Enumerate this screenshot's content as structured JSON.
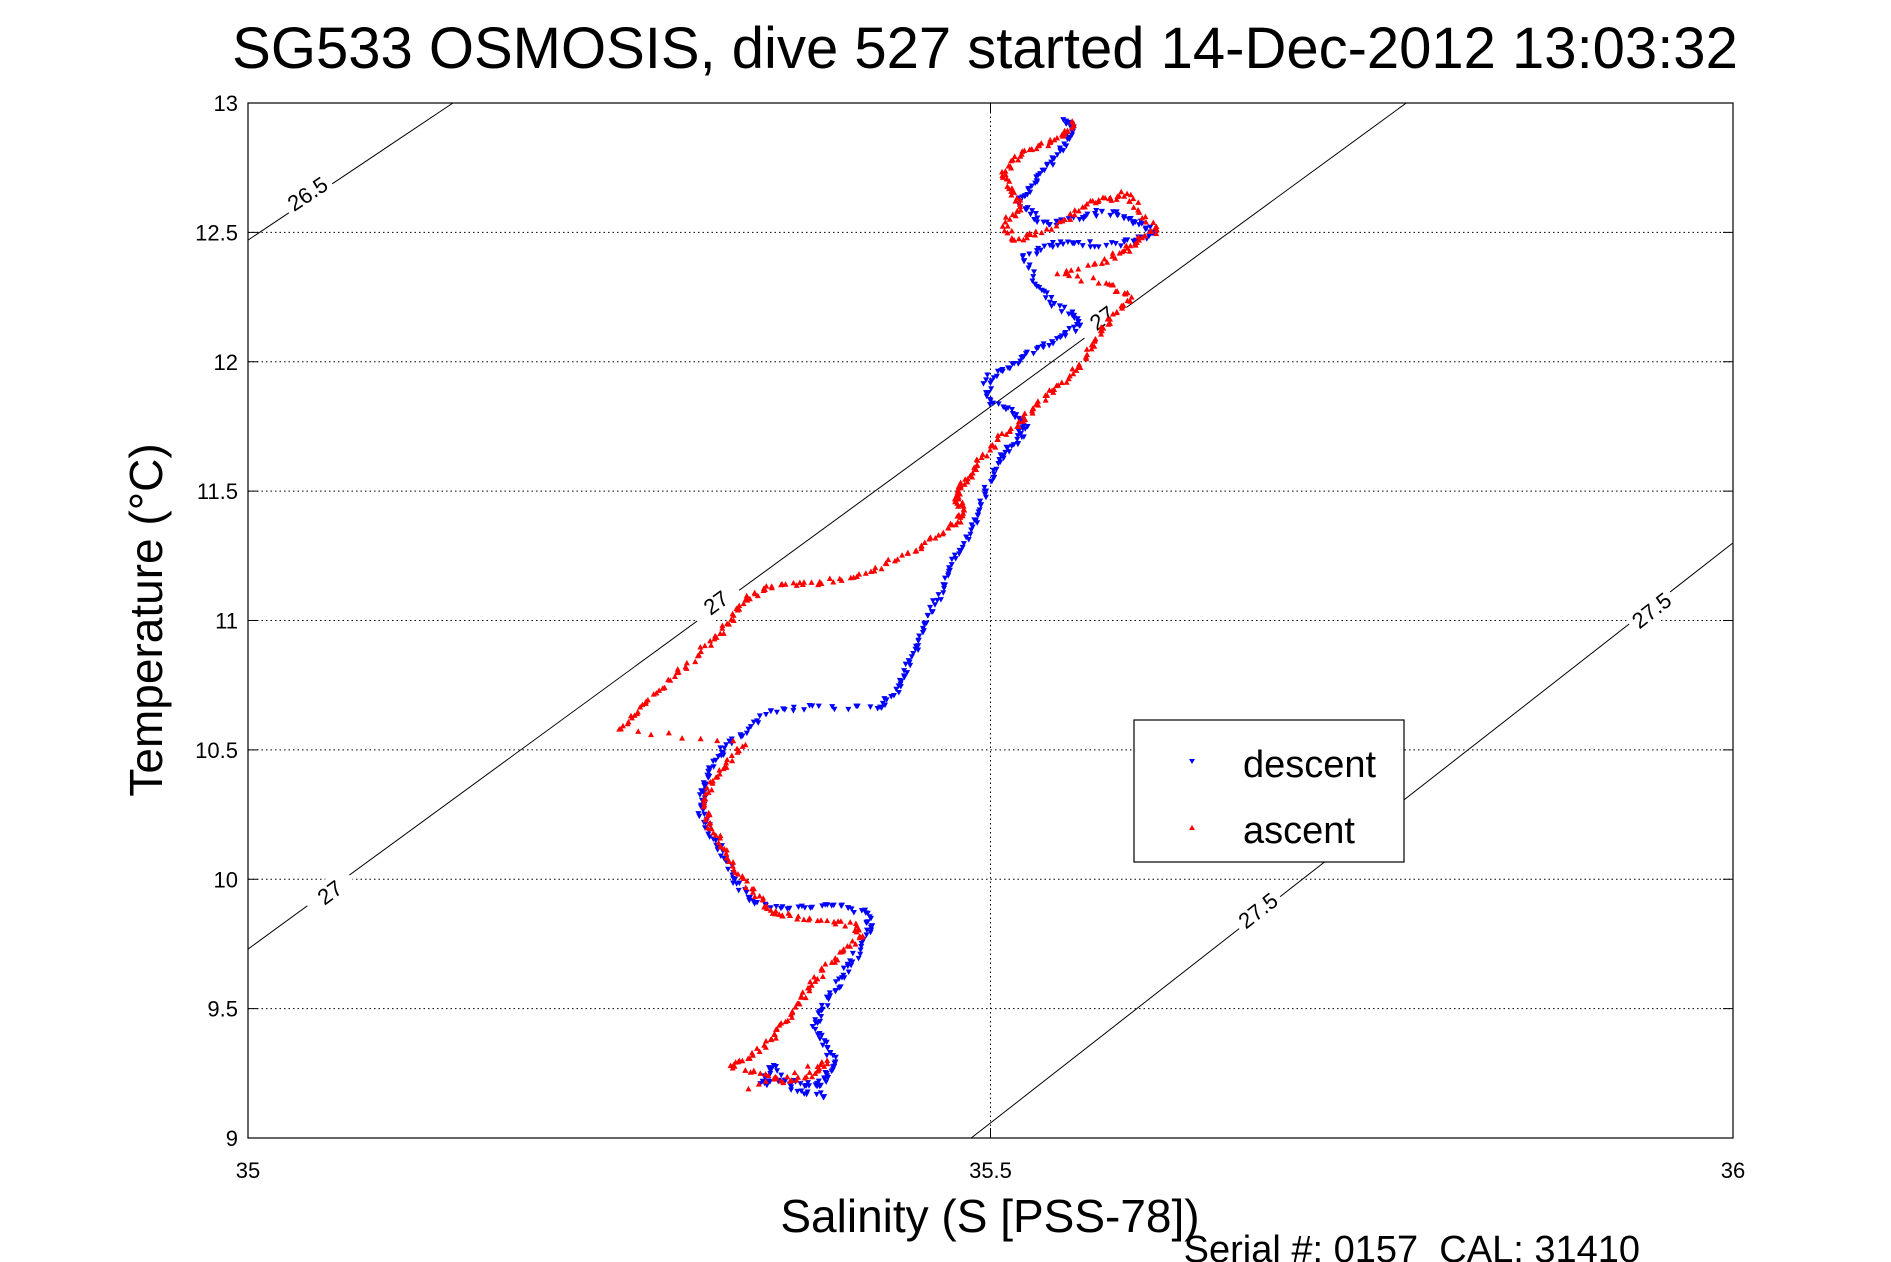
{
  "chart_data": {
    "type": "scatter",
    "title": "SG533 OSMOSIS, dive 527 started 14-Dec-2012 13:03:32",
    "xlabel": "Salinity (S [PSS-78])",
    "ylabel": "Temperature (°C)",
    "footer": "Serial #: 0157  CAL: 31410",
    "xlim": [
      35,
      36
    ],
    "ylim": [
      9,
      13
    ],
    "x_ticks": [
      "35",
      "35.5",
      "36"
    ],
    "y_ticks": [
      "9",
      "9.5",
      "10",
      "10.5",
      "11",
      "11.5",
      "12",
      "12.5",
      "13"
    ],
    "grid": true,
    "legend_position": "lower-right",
    "density_contours": [
      {
        "label": "26.5",
        "points": [
          [
            35.0,
            12.47
          ],
          [
            35.138,
            13.0
          ]
        ],
        "label_at": [
          35.04,
          12.65
        ]
      },
      {
        "label": "27",
        "points": [
          [
            35.0,
            9.73
          ],
          [
            35.78,
            13.0
          ]
        ],
        "label_ats": [
          [
            35.055,
            9.95
          ],
          [
            35.315,
            11.07
          ],
          [
            35.575,
            12.17
          ]
        ]
      },
      {
        "label": "27.5",
        "points": [
          [
            35.487,
            9.0
          ],
          [
            36.0,
            11.3
          ]
        ],
        "label_ats": [
          [
            35.68,
            9.88
          ],
          [
            35.945,
            11.04
          ]
        ]
      }
    ],
    "series": [
      {
        "name": "descent",
        "color": "#0000ff",
        "marker": "triangle-down",
        "points": [
          [
            35.551,
            12.93
          ],
          [
            35.555,
            12.91
          ],
          [
            35.552,
            12.86
          ],
          [
            35.545,
            12.8
          ],
          [
            35.535,
            12.74
          ],
          [
            35.526,
            12.67
          ],
          [
            35.52,
            12.62
          ],
          [
            35.527,
            12.57
          ],
          [
            35.54,
            12.53
          ],
          [
            35.56,
            12.55
          ],
          [
            35.575,
            12.58
          ],
          [
            35.59,
            12.56
          ],
          [
            35.6,
            12.53
          ],
          [
            35.61,
            12.5
          ],
          [
            35.598,
            12.47
          ],
          [
            35.578,
            12.45
          ],
          [
            35.555,
            12.46
          ],
          [
            35.54,
            12.45
          ],
          [
            35.522,
            12.41
          ],
          [
            35.53,
            12.3
          ],
          [
            35.54,
            12.23
          ],
          [
            35.555,
            12.18
          ],
          [
            35.56,
            12.14
          ],
          [
            35.548,
            12.1
          ],
          [
            35.535,
            12.06
          ],
          [
            35.522,
            12.02
          ],
          [
            35.508,
            11.97
          ],
          [
            35.497,
            11.93
          ],
          [
            35.5,
            11.85
          ],
          [
            35.515,
            11.8
          ],
          [
            35.525,
            11.75
          ],
          [
            35.518,
            11.7
          ],
          [
            35.51,
            11.65
          ],
          [
            35.502,
            11.58
          ],
          [
            35.497,
            11.5
          ],
          [
            35.492,
            11.42
          ],
          [
            35.487,
            11.35
          ],
          [
            35.48,
            11.27
          ],
          [
            35.472,
            11.19
          ],
          [
            35.465,
            11.1
          ],
          [
            35.458,
            11.02
          ],
          [
            35.452,
            10.94
          ],
          [
            35.447,
            10.86
          ],
          [
            35.442,
            10.78
          ],
          [
            35.435,
            10.71
          ],
          [
            35.424,
            10.66
          ],
          [
            35.38,
            10.67
          ],
          [
            35.352,
            10.65
          ],
          [
            35.337,
            10.58
          ],
          [
            35.322,
            10.52
          ],
          [
            35.315,
            10.46
          ],
          [
            35.31,
            10.4
          ],
          [
            35.306,
            10.34
          ],
          [
            35.305,
            10.28
          ],
          [
            35.307,
            10.22
          ],
          [
            35.315,
            10.15
          ],
          [
            35.322,
            10.08
          ],
          [
            35.328,
            10.0
          ],
          [
            35.337,
            9.93
          ],
          [
            35.352,
            9.89
          ],
          [
            35.375,
            9.89
          ],
          [
            35.4,
            9.9
          ],
          [
            35.416,
            9.87
          ],
          [
            35.42,
            9.82
          ],
          [
            35.414,
            9.76
          ],
          [
            35.407,
            9.68
          ],
          [
            35.4,
            9.62
          ],
          [
            35.392,
            9.55
          ],
          [
            35.385,
            9.49
          ],
          [
            35.382,
            9.42
          ],
          [
            35.39,
            9.35
          ],
          [
            35.395,
            9.29
          ],
          [
            35.39,
            9.24
          ],
          [
            35.385,
            9.2
          ],
          [
            35.372,
            9.21
          ],
          [
            35.357,
            9.22
          ],
          [
            35.345,
            9.21
          ],
          [
            35.354,
            9.28
          ],
          [
            35.37,
            9.18
          ],
          [
            35.388,
            9.16
          ]
        ]
      },
      {
        "name": "ascent",
        "color": "#ff0000",
        "marker": "triangle-up",
        "points": [
          [
            35.555,
            12.93
          ],
          [
            35.55,
            12.88
          ],
          [
            35.54,
            12.85
          ],
          [
            35.528,
            12.82
          ],
          [
            35.515,
            12.78
          ],
          [
            35.508,
            12.72
          ],
          [
            35.514,
            12.66
          ],
          [
            35.52,
            12.6
          ],
          [
            35.51,
            12.54
          ],
          [
            35.515,
            12.47
          ],
          [
            35.53,
            12.49
          ],
          [
            35.55,
            12.55
          ],
          [
            35.565,
            12.61
          ],
          [
            35.58,
            12.63
          ],
          [
            35.592,
            12.65
          ],
          [
            35.6,
            12.58
          ],
          [
            35.612,
            12.51
          ],
          [
            35.6,
            12.47
          ],
          [
            35.59,
            12.43
          ],
          [
            35.575,
            12.38
          ],
          [
            35.545,
            12.34
          ],
          [
            35.58,
            12.3
          ],
          [
            35.595,
            12.25
          ],
          [
            35.585,
            12.19
          ],
          [
            35.575,
            12.12
          ],
          [
            35.568,
            12.05
          ],
          [
            35.56,
            11.98
          ],
          [
            35.548,
            11.92
          ],
          [
            35.537,
            11.87
          ],
          [
            35.528,
            11.81
          ],
          [
            35.518,
            11.75
          ],
          [
            35.505,
            11.7
          ],
          [
            35.494,
            11.63
          ],
          [
            35.488,
            11.57
          ],
          [
            35.48,
            11.52
          ],
          [
            35.476,
            11.47
          ],
          [
            35.482,
            11.43
          ],
          [
            35.478,
            11.38
          ],
          [
            35.465,
            11.33
          ],
          [
            35.45,
            11.27
          ],
          [
            35.43,
            11.22
          ],
          [
            35.41,
            11.17
          ],
          [
            35.385,
            11.15
          ],
          [
            35.362,
            11.14
          ],
          [
            35.348,
            11.12
          ],
          [
            35.335,
            11.08
          ],
          [
            35.327,
            11.02
          ],
          [
            35.318,
            10.95
          ],
          [
            35.305,
            10.88
          ],
          [
            35.29,
            10.8
          ],
          [
            35.275,
            10.72
          ],
          [
            35.262,
            10.64
          ],
          [
            35.25,
            10.58
          ],
          [
            35.335,
            10.52
          ],
          [
            35.322,
            10.45
          ],
          [
            35.313,
            10.38
          ],
          [
            35.308,
            10.31
          ],
          [
            35.309,
            10.24
          ],
          [
            35.315,
            10.17
          ],
          [
            35.322,
            10.1
          ],
          [
            35.33,
            10.02
          ],
          [
            35.34,
            9.95
          ],
          [
            35.352,
            9.88
          ],
          [
            35.365,
            9.86
          ],
          [
            35.39,
            9.84
          ],
          [
            35.41,
            9.82
          ],
          [
            35.412,
            9.78
          ],
          [
            35.4,
            9.72
          ],
          [
            35.387,
            9.65
          ],
          [
            35.378,
            9.58
          ],
          [
            35.37,
            9.52
          ],
          [
            35.362,
            9.45
          ],
          [
            35.352,
            9.38
          ],
          [
            35.34,
            9.32
          ],
          [
            35.325,
            9.28
          ],
          [
            35.345,
            9.25
          ],
          [
            35.365,
            9.22
          ],
          [
            35.382,
            9.25
          ],
          [
            35.39,
            9.3
          ],
          [
            35.337,
            9.19
          ]
        ]
      }
    ]
  }
}
